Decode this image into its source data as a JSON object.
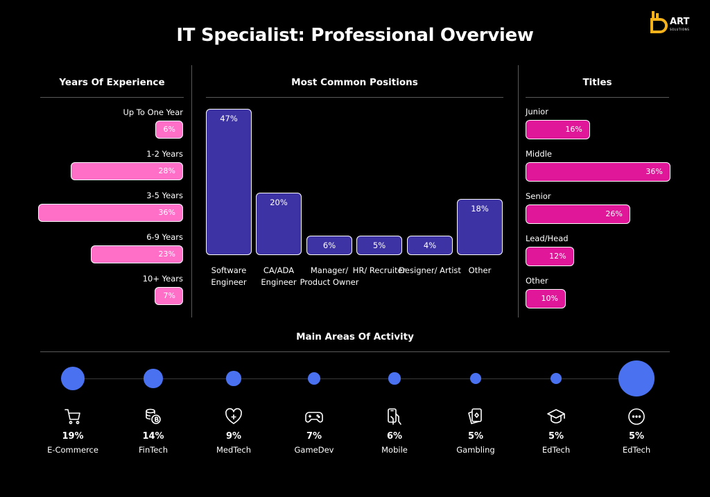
{
  "header": {
    "title": "IT Specialist: Professional Overview"
  },
  "logo": {
    "word": "ART",
    "sub": "SOLUTIONS"
  },
  "experience": {
    "heading": "Years Of Experience",
    "items": [
      {
        "label": "Up To One Year",
        "value": 6,
        "display": "6%"
      },
      {
        "label": "1-2 Years",
        "value": 28,
        "display": "28%"
      },
      {
        "label": "3-5 Years",
        "value": 36,
        "display": "36%"
      },
      {
        "label": "6-9 Years",
        "value": 23,
        "display": "23%"
      },
      {
        "label": "10+ Years",
        "value": 7,
        "display": "7%"
      }
    ]
  },
  "positions": {
    "heading": "Most Common Positions",
    "items": [
      {
        "label": "Software Engineer",
        "value": 47,
        "display": "47%"
      },
      {
        "label": "CA/ADA Engineer",
        "value": 20,
        "display": "20%"
      },
      {
        "label": "Manager/ Product Owner",
        "value": 6,
        "display": "6%"
      },
      {
        "label": "HR/ Recruiter",
        "value": 5,
        "display": "5%"
      },
      {
        "label": "Designer/ Artist",
        "value": 4,
        "display": "4%"
      },
      {
        "label": "Other",
        "value": 18,
        "display": "18%"
      }
    ]
  },
  "titles": {
    "heading": "Titles",
    "items": [
      {
        "label": "Junior",
        "value": 16,
        "display": "16%"
      },
      {
        "label": "Middle",
        "value": 36,
        "display": "36%"
      },
      {
        "label": "Senior",
        "value": 26,
        "display": "26%"
      },
      {
        "label": "Lead/Head",
        "value": 12,
        "display": "12%"
      },
      {
        "label": "Other",
        "value": 10,
        "display": "10%"
      }
    ]
  },
  "areas": {
    "heading": "Main Areas Of Activity",
    "items": [
      {
        "label": "E-Commerce",
        "value": 19,
        "display": "19%",
        "icon": "shopping-cart-icon"
      },
      {
        "label": "FinTech",
        "value": 14,
        "display": "14%",
        "icon": "coins-icon"
      },
      {
        "label": "MedTech",
        "value": 9,
        "display": "9%",
        "icon": "heart-plus-icon"
      },
      {
        "label": "GameDev",
        "value": 7,
        "display": "7%",
        "icon": "gamepad-icon"
      },
      {
        "label": "Mobile",
        "value": 6,
        "display": "6%",
        "icon": "phone-hand-icon"
      },
      {
        "label": "Gambling",
        "value": 5,
        "display": "5%",
        "icon": "playing-cards-icon"
      },
      {
        "label": "EdTech",
        "value": 5,
        "display": "5%",
        "icon": "graduation-cap-icon"
      },
      {
        "label": "EdTech",
        "value": 5,
        "display": "5%",
        "icon": "more-dots-icon"
      }
    ]
  },
  "colors": {
    "background": "#000000",
    "experience_bar": "#ff6fc8",
    "positions_bar": "#3d33a5",
    "titles_bar": "#e01798",
    "area_dot": "#4a72f0",
    "logo": "#f6b21a"
  },
  "chart_data": [
    {
      "type": "bar",
      "orientation": "horizontal",
      "title": "Years Of Experience",
      "categories": [
        "Up To One Year",
        "1-2 Years",
        "3-5 Years",
        "6-9 Years",
        "10+ Years"
      ],
      "values": [
        6,
        28,
        36,
        23,
        7
      ]
    },
    {
      "type": "bar",
      "title": "Most Common Positions",
      "categories": [
        "Software Engineer",
        "CA/ADA Engineer",
        "Manager/ Product Owner",
        "HR/ Recruiter",
        "Designer/ Artist",
        "Other"
      ],
      "values": [
        47,
        20,
        6,
        5,
        4,
        18
      ]
    },
    {
      "type": "bar",
      "orientation": "horizontal",
      "title": "Titles",
      "categories": [
        "Junior",
        "Middle",
        "Senior",
        "Lead/Head",
        "Other"
      ],
      "values": [
        16,
        36,
        26,
        12,
        10
      ]
    },
    {
      "type": "scatter",
      "title": "Main Areas Of Activity",
      "categories": [
        "E-Commerce",
        "FinTech",
        "MedTech",
        "GameDev",
        "Mobile",
        "Gambling",
        "EdTech",
        "EdTech"
      ],
      "values": [
        19,
        14,
        9,
        7,
        6,
        5,
        5,
        5
      ]
    }
  ]
}
